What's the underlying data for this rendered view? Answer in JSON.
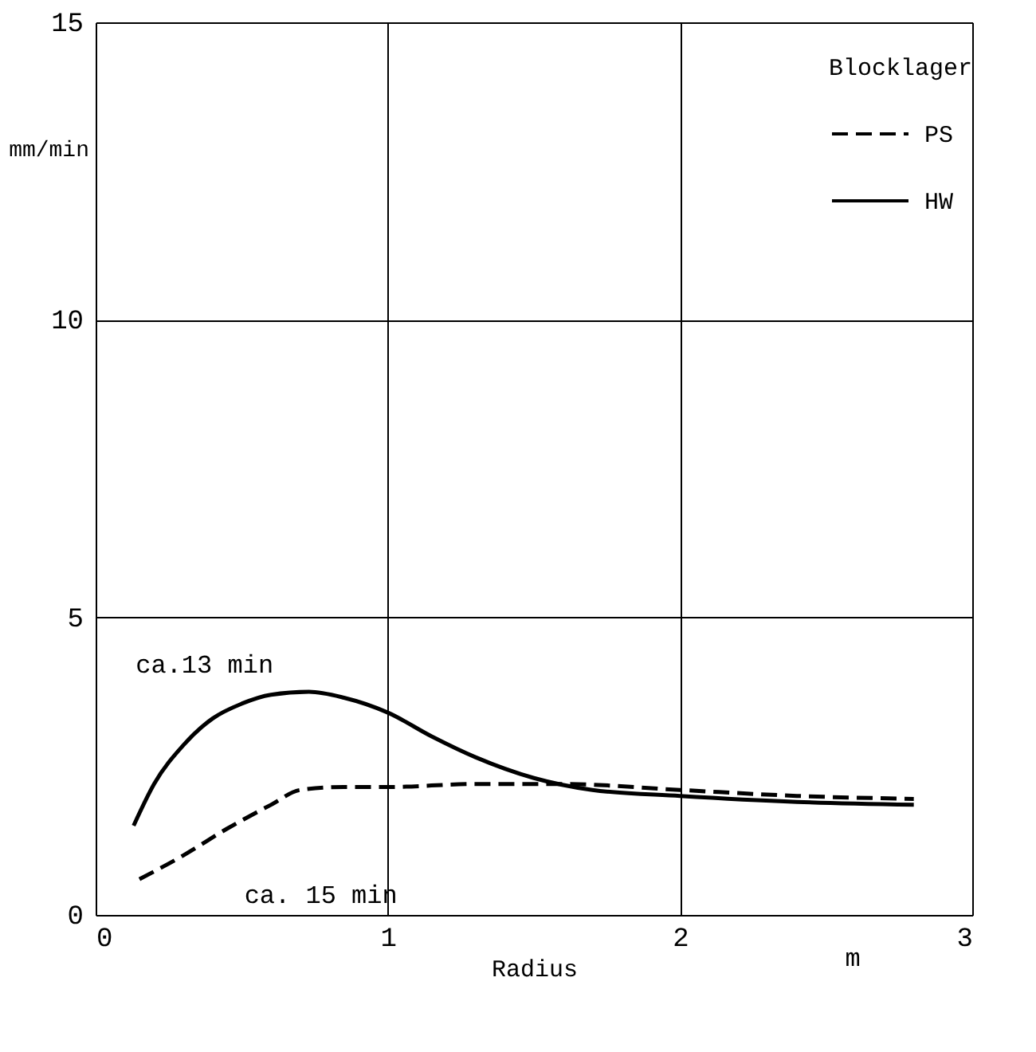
{
  "chart_data": {
    "type": "line",
    "xlabel": "Radius",
    "ylabel": "mm/min",
    "legend_title": "Blocklager",
    "legend": "top right",
    "grid": true,
    "xlim": [
      0,
      3
    ],
    "ylim": [
      0,
      15
    ],
    "xticks": [
      0,
      1,
      2,
      3
    ],
    "yticks": [
      0,
      5,
      10,
      15
    ],
    "series": [
      {
        "name": "PS",
        "color": "#000000",
        "line_style": "dashed",
        "x": [
          0.15,
          0.3,
          0.45,
          0.6,
          0.7,
          0.85,
          1.0,
          1.3,
          1.6,
          2.0,
          2.4,
          2.8
        ],
        "values": [
          0.6,
          1.0,
          1.45,
          1.85,
          2.1,
          2.15,
          2.15,
          2.2,
          2.2,
          2.1,
          2.0,
          1.95
        ]
      },
      {
        "name": "HW",
        "color": "#000000",
        "line_style": "solid",
        "x": [
          0.13,
          0.2,
          0.3,
          0.4,
          0.5,
          0.6,
          0.73,
          0.85,
          1.0,
          1.15,
          1.3,
          1.5,
          1.7,
          2.0,
          2.4,
          2.8
        ],
        "values": [
          1.5,
          2.2,
          2.85,
          3.3,
          3.55,
          3.7,
          3.75,
          3.65,
          3.4,
          3.0,
          2.65,
          2.3,
          2.1,
          2.0,
          1.9,
          1.85
        ]
      }
    ],
    "annotations": [
      {
        "text": "ca.13 min",
        "x": 0.4,
        "y": 3.3
      },
      {
        "text": "ca. 15 min",
        "x": 0.4,
        "y": 1.3
      },
      "m"
    ]
  }
}
